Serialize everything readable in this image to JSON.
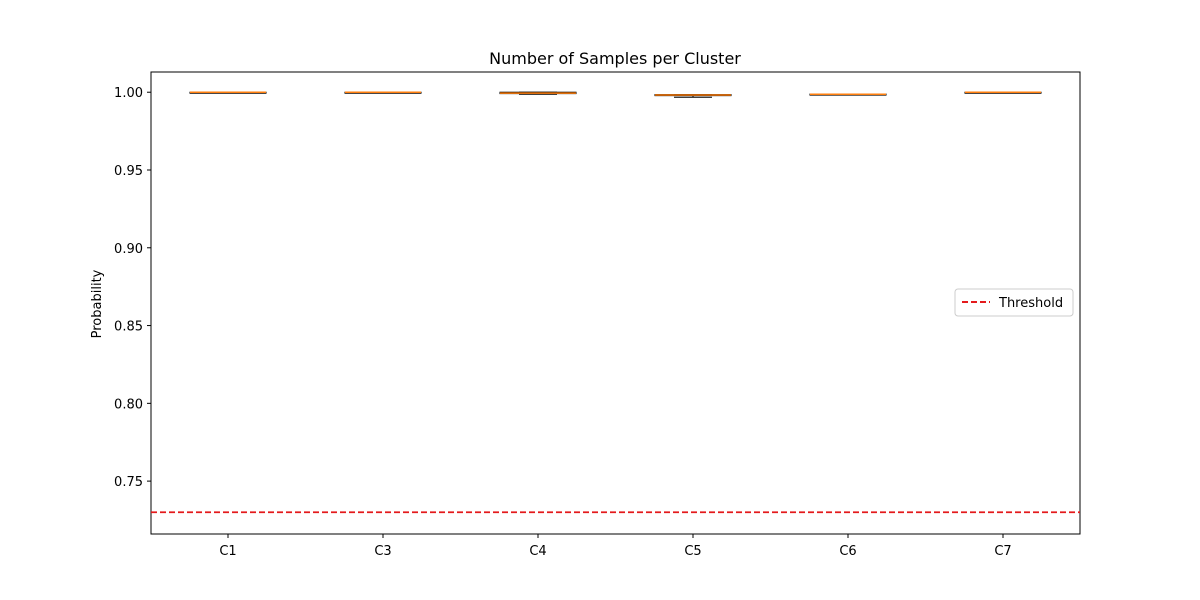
{
  "chart_data": {
    "type": "box",
    "title": "Number of Samples per Cluster",
    "xlabel": "",
    "ylabel": "Probability",
    "ylim": [
      0.716,
      1.013
    ],
    "yticks": [
      "0.75",
      "0.80",
      "0.85",
      "0.90",
      "0.95",
      "1.00"
    ],
    "ytick_values": [
      0.75,
      0.8,
      0.85,
      0.9,
      0.95,
      1.0
    ],
    "categories": [
      "C1",
      "C3",
      "C4",
      "C5",
      "C6",
      "C7"
    ],
    "boxes": [
      {
        "label": "C1",
        "whisker_low": 0.9999,
        "q1": 0.9999,
        "median": 1.0,
        "q3": 1.0,
        "whisker_high": 1.0
      },
      {
        "label": "C3",
        "whisker_low": 0.9999,
        "q1": 0.9999,
        "median": 1.0,
        "q3": 1.0,
        "whisker_high": 1.0
      },
      {
        "label": "C4",
        "whisker_low": 0.9987,
        "q1": 0.9991,
        "median": 0.9994,
        "q3": 1.0,
        "whisker_high": 1.0
      },
      {
        "label": "C5",
        "whisker_low": 0.9968,
        "q1": 0.9978,
        "median": 0.9982,
        "q3": 0.9985,
        "whisker_high": 0.9985
      },
      {
        "label": "C6",
        "whisker_low": 0.9985,
        "q1": 0.9985,
        "median": 0.9987,
        "q3": 0.9988,
        "whisker_high": 0.9988
      },
      {
        "label": "C7",
        "whisker_low": 0.9999,
        "q1": 0.9999,
        "median": 1.0,
        "q3": 1.0,
        "whisker_high": 1.0
      }
    ],
    "threshold": {
      "label": "Threshold",
      "value": 0.73,
      "color": "#e41a1c"
    },
    "median_color": "#ff7f0e",
    "legend": {
      "position": "right",
      "entries": [
        "Threshold"
      ]
    },
    "grid": false
  }
}
